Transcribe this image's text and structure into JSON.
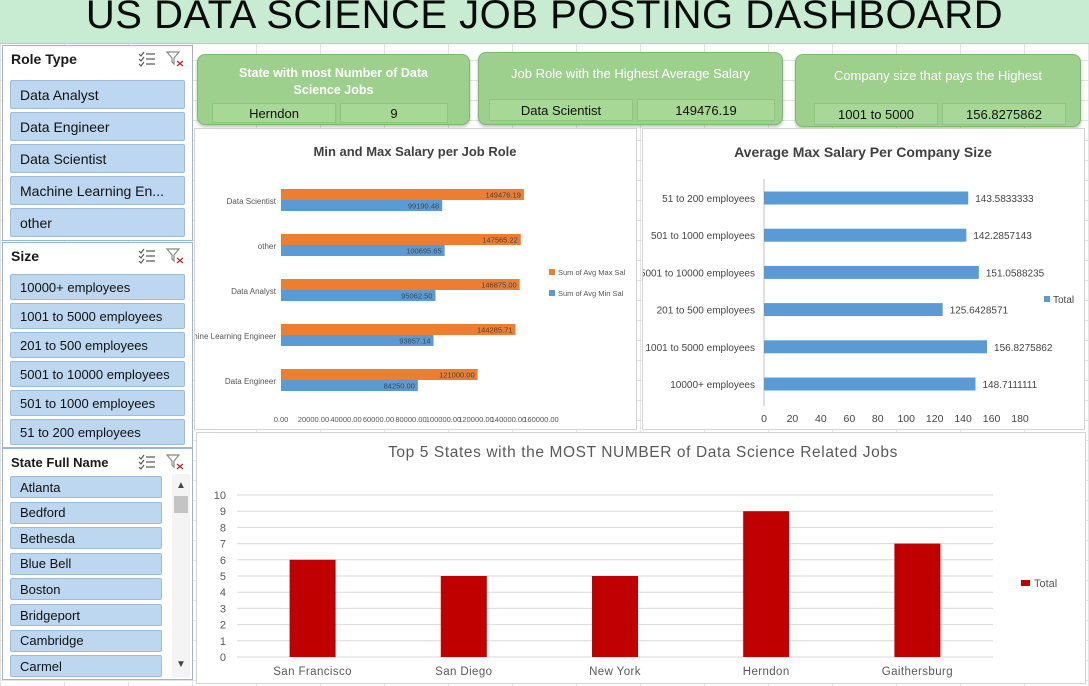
{
  "title": "US DATA SCIENCE JOB POSTING DASHBOARD",
  "slicers": {
    "role_type": {
      "title": "Role Type",
      "items": [
        "Data Analyst",
        "Data Engineer",
        "Data Scientist",
        "Machine Learning En...",
        "other"
      ]
    },
    "size": {
      "title": "Size",
      "items": [
        "10000+ employees",
        "1001 to 5000 employees",
        "201 to 500 employees",
        "5001 to 10000 employees",
        "501 to 1000 employees",
        "51 to 200 employees"
      ]
    },
    "state": {
      "title": "State Full Name",
      "items": [
        "Atlanta",
        "Bedford",
        "Bethesda",
        "Blue Bell",
        "Boston",
        "Bridgeport",
        "Cambridge",
        "Carmel"
      ]
    }
  },
  "kpis": [
    {
      "label": "State with most Number of Data Science Jobs",
      "name": "Herndon",
      "value": "9"
    },
    {
      "label": "Job Role with the Highest Average Salary",
      "name": "Data Scientist",
      "value": "149476.19"
    },
    {
      "label": "Company size that pays the Highest",
      "name": "1001 to 5000",
      "value": "156.8275862"
    }
  ],
  "colors": {
    "max": "#ed7d31",
    "min": "#5b9bd5",
    "bar_blue": "#5b9bd5",
    "bar_red": "#c00000",
    "kpi_green": "#9dd08d",
    "slicer_blue": "#bcd7ef"
  },
  "chart_data": [
    {
      "type": "bar",
      "orientation": "horizontal",
      "title": "Min and Max Salary per Job Role",
      "categories": [
        "Data Scientist",
        "other",
        "Data Analyst",
        "Machine Learning Engineer",
        "Data Engineer"
      ],
      "series": [
        {
          "name": "Sum of Avg Max Sal",
          "values": [
            149476.19,
            147565.22,
            146875.0,
            144285.71,
            121000.0
          ],
          "labels": [
            "149476.19",
            "147565.22",
            "146875.00",
            "144285.71",
            "121000.00"
          ]
        },
        {
          "name": "Sum of Avg Min Sal",
          "values": [
            99190.48,
            100695.65,
            95062.5,
            93857.14,
            84250.0
          ],
          "labels": [
            "99190.48",
            "100695.65",
            "95062.50",
            "93857.14",
            "84250.00"
          ]
        }
      ],
      "xlim": [
        0,
        160000
      ],
      "xticks": [
        "0.00",
        "20000.00",
        "40000.00",
        "60000.00",
        "80000.00",
        "100000.00",
        "120000.00",
        "140000.00",
        "160000.00"
      ],
      "legend": "right"
    },
    {
      "type": "bar",
      "orientation": "horizontal",
      "title": "Average Max Salary Per Company Size",
      "categories": [
        "51 to 200 employees",
        "501 to 1000 employees",
        "5001 to 10000 employees",
        "201 to 500 employees",
        "1001 to 5000 employees",
        "10000+ employees"
      ],
      "series": [
        {
          "name": "Total",
          "values": [
            143.5833333,
            142.2857143,
            151.0588235,
            125.6428571,
            156.8275862,
            148.7111111
          ],
          "labels": [
            "143.5833333",
            "142.2857143",
            "151.0588235",
            "125.6428571",
            "156.8275862",
            "148.7111111"
          ]
        }
      ],
      "xlim": [
        0,
        180
      ],
      "xticks": [
        "0",
        "20",
        "40",
        "60",
        "80",
        "100",
        "120",
        "140",
        "160",
        "180"
      ],
      "legend": "right"
    },
    {
      "type": "bar",
      "title": "Top 5 States with the MOST NUMBER of Data Science Related Jobs",
      "categories": [
        "San Francisco",
        "San Diego",
        "New York",
        "Herndon",
        "Gaithersburg"
      ],
      "series": [
        {
          "name": "Total",
          "values": [
            6,
            5,
            5,
            9,
            7
          ]
        }
      ],
      "ylim": [
        0,
        10
      ],
      "yticks": [
        "0",
        "1",
        "2",
        "3",
        "4",
        "5",
        "6",
        "7",
        "8",
        "9",
        "10"
      ],
      "grid": true,
      "legend": "right"
    }
  ]
}
